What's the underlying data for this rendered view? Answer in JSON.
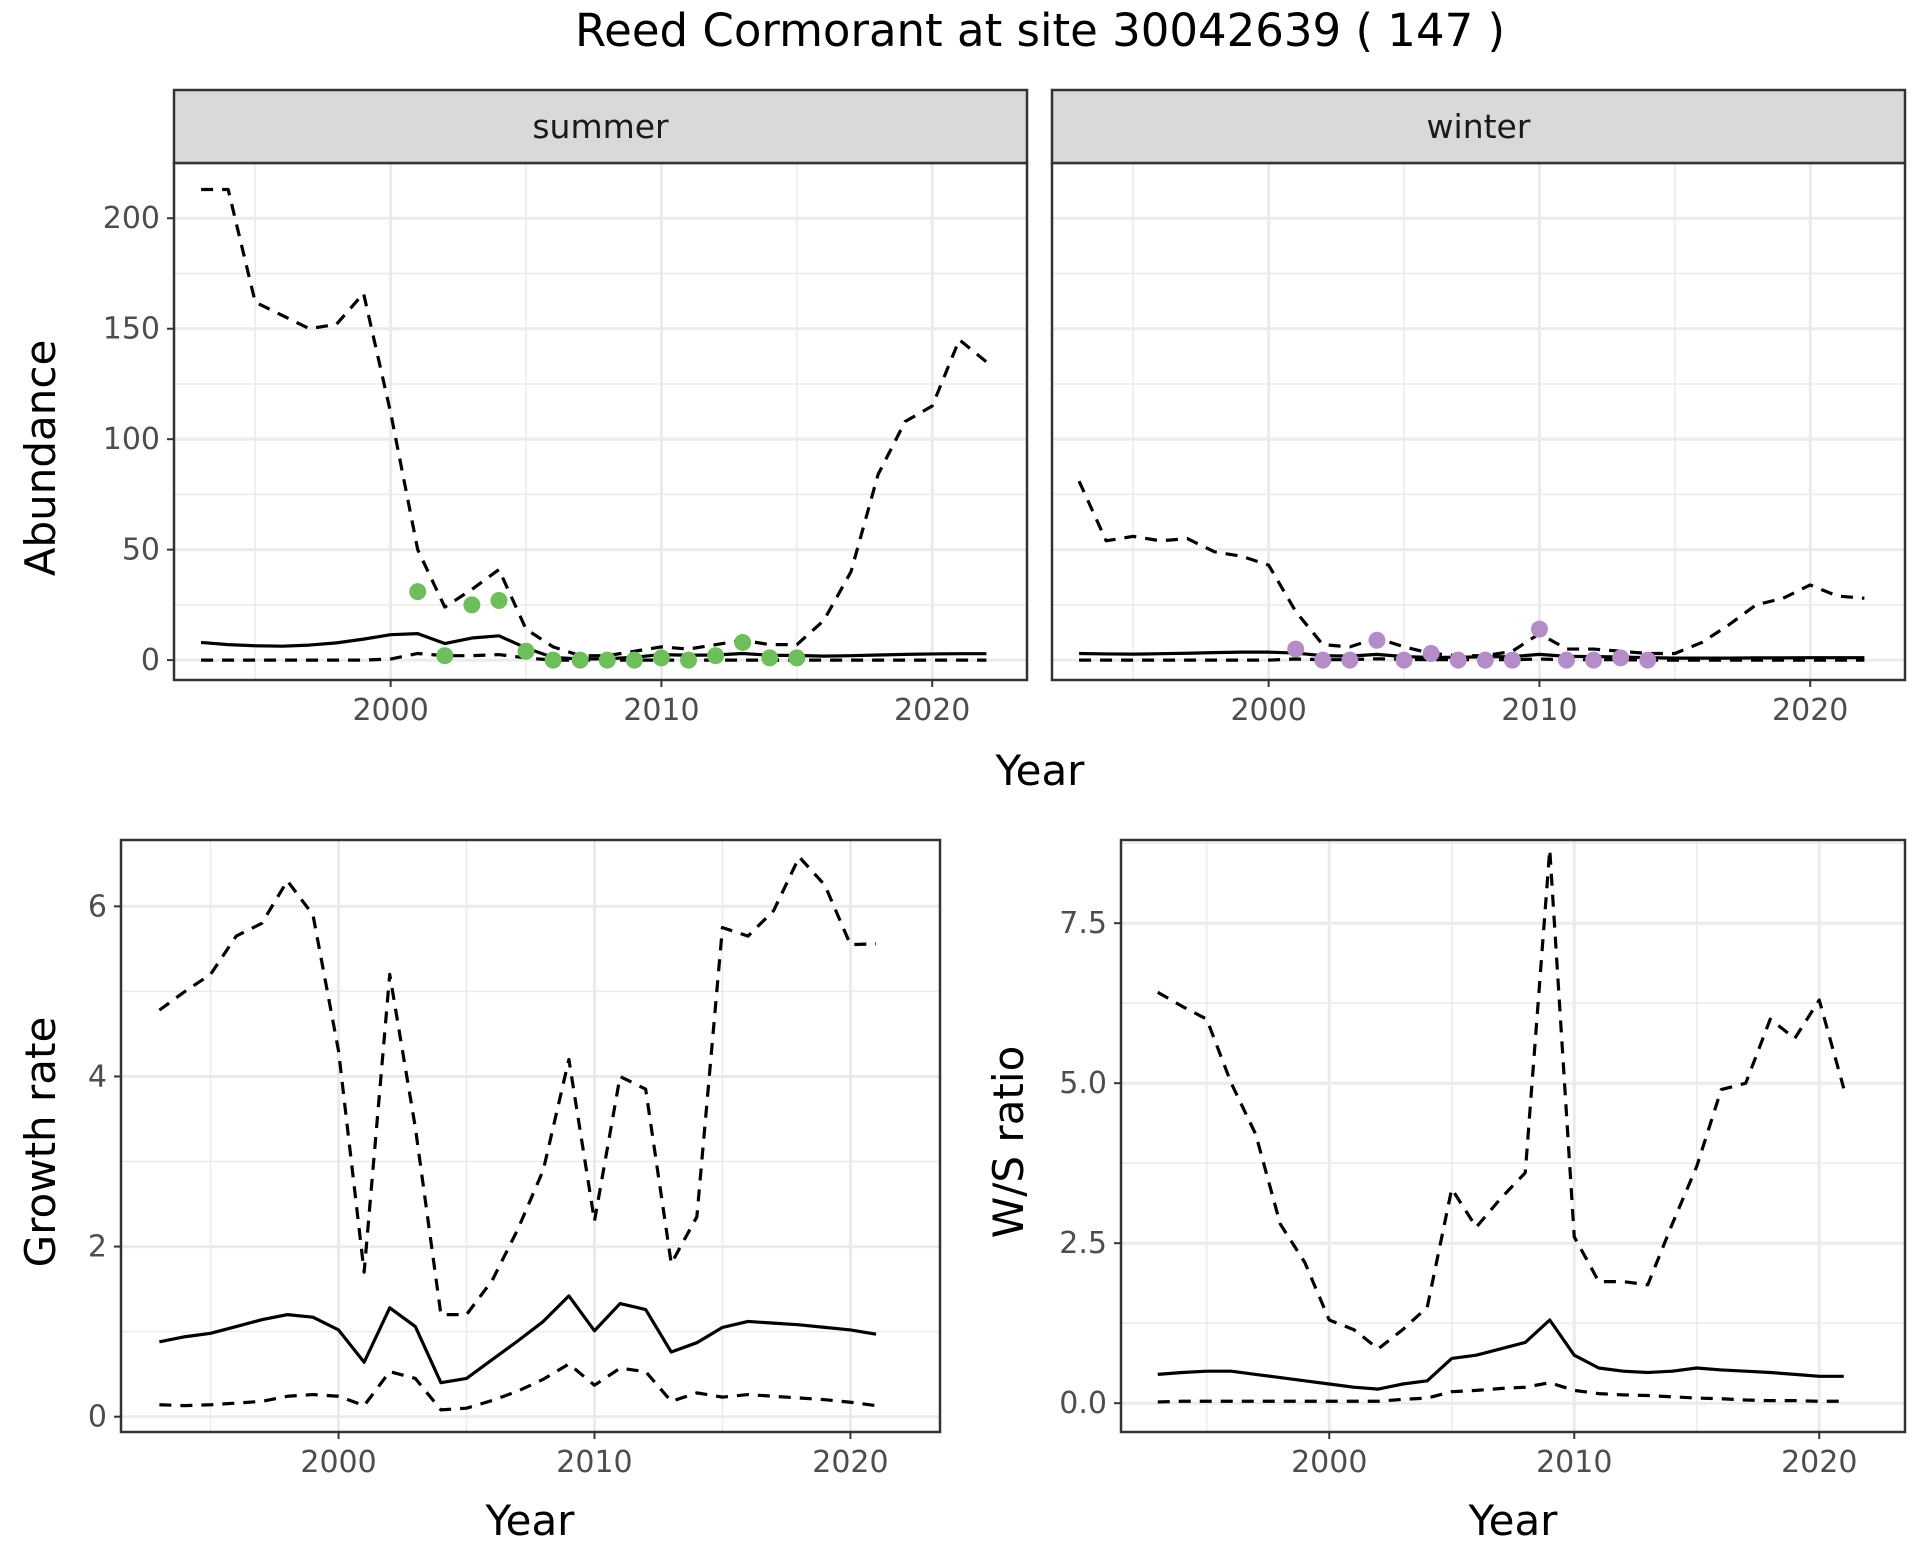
{
  "title": "Reed Cormorant at site 30042639 ( 147 )",
  "colors": {
    "summer_points": "#6ebf5c",
    "winter_points": "#b48cc8",
    "lines": "#000000",
    "strip_fill": "#d9d9d9",
    "grid": "#ebebeb"
  },
  "chart_data": [
    {
      "type": "line",
      "panel": "summer",
      "facet_label": "summer",
      "xlabel": "Year",
      "ylabel": "Abundance",
      "xlim": [
        1992,
        2023.5
      ],
      "ylim": [
        -9,
        225
      ],
      "x_ticks": [
        2000,
        2010,
        2020
      ],
      "y_ticks": [
        0,
        50,
        100,
        150,
        200
      ],
      "grid": true,
      "series": [
        {
          "style": "solid",
          "x": [
            1993,
            1994,
            1995,
            1996,
            1997,
            1998,
            1999,
            2000,
            2001,
            2002,
            2003,
            2004,
            2005,
            2006,
            2007,
            2008,
            2009,
            2010,
            2011,
            2012,
            2013,
            2014,
            2015,
            2016,
            2017,
            2018,
            2019,
            2020,
            2021,
            2022
          ],
          "y": [
            8,
            7,
            6.5,
            6.3,
            6.8,
            7.8,
            9.5,
            11.5,
            12,
            7.5,
            10,
            11,
            5.5,
            1.2,
            0.5,
            0.6,
            1.3,
            2.5,
            2.2,
            2.3,
            3,
            2.2,
            2.1,
            1.8,
            2.0,
            2.3,
            2.6,
            2.8,
            2.9,
            2.9
          ]
        },
        {
          "style": "dashed",
          "x": [
            1993,
            1994,
            1995,
            1996,
            1997,
            1998,
            1999,
            2000,
            2001,
            2002,
            2003,
            2004,
            2005,
            2006,
            2007,
            2008,
            2009,
            2010,
            2011,
            2012,
            2013,
            2014,
            2015,
            2016,
            2017,
            2018,
            2019,
            2020,
            2021,
            2022
          ],
          "y": [
            213,
            213,
            162,
            156,
            150,
            152,
            166,
            112,
            50,
            24,
            32,
            41,
            14,
            6,
            2,
            2,
            4,
            6,
            5,
            7,
            9,
            7,
            7,
            18,
            40,
            84,
            108,
            115,
            145,
            135
          ]
        },
        {
          "style": "dashed",
          "x": [
            1993,
            1994,
            1995,
            1996,
            1997,
            1998,
            1999,
            2000,
            2001,
            2002,
            2003,
            2004,
            2005,
            2006,
            2007,
            2008,
            2009,
            2010,
            2011,
            2012,
            2013,
            2014,
            2015,
            2016,
            2017,
            2018,
            2019,
            2020,
            2021,
            2022
          ],
          "y": [
            0,
            0,
            0,
            0,
            0,
            0,
            0,
            0.5,
            3,
            2,
            2,
            2.5,
            1,
            0,
            0,
            0,
            0,
            0,
            0,
            0,
            0,
            0,
            0,
            0,
            0,
            0,
            0,
            0,
            0,
            0
          ]
        },
        {
          "style": "points",
          "x": [
            2001,
            2002,
            2003,
            2004,
            2005,
            2006,
            2007,
            2008,
            2009,
            2010,
            2011,
            2012,
            2013,
            2014,
            2015
          ],
          "y": [
            31,
            2,
            25,
            27,
            4,
            0,
            0,
            0,
            0,
            1,
            0,
            2,
            8,
            1,
            1
          ]
        }
      ]
    },
    {
      "type": "line",
      "panel": "winter",
      "facet_label": "winter",
      "xlabel": "Year",
      "ylabel": "Abundance",
      "xlim": [
        1992,
        2023.5
      ],
      "ylim": [
        -9,
        225
      ],
      "x_ticks": [
        2000,
        2010,
        2020
      ],
      "y_ticks": [
        0,
        50,
        100,
        150,
        200
      ],
      "grid": true,
      "series": [
        {
          "style": "solid",
          "x": [
            1993,
            1994,
            1995,
            1996,
            1997,
            1998,
            1999,
            2000,
            2001,
            2002,
            2003,
            2004,
            2005,
            2006,
            2007,
            2008,
            2009,
            2010,
            2011,
            2012,
            2013,
            2014,
            2015,
            2016,
            2017,
            2018,
            2019,
            2020,
            2021,
            2022
          ],
          "y": [
            3,
            2.8,
            2.7,
            2.9,
            3.1,
            3.4,
            3.6,
            3.6,
            3.2,
            2.0,
            1.8,
            2.6,
            1.6,
            1.2,
            1.3,
            1.5,
            1.6,
            2.6,
            1.7,
            1.6,
            1.4,
            1.1,
            0.9,
            0.9,
            0.9,
            1.0,
            1.0,
            1.1,
            1.1,
            1.1
          ]
        },
        {
          "style": "dashed",
          "x": [
            1993,
            1994,
            1995,
            1996,
            1997,
            1998,
            1999,
            2000,
            2001,
            2002,
            2003,
            2004,
            2005,
            2006,
            2007,
            2008,
            2009,
            2010,
            2011,
            2012,
            2013,
            2014,
            2015,
            2016,
            2017,
            2018,
            2019,
            2020,
            2021,
            2022
          ],
          "y": [
            81,
            54,
            56,
            54,
            55,
            49,
            47,
            43,
            22,
            7,
            6,
            10,
            6,
            3,
            2,
            2,
            4,
            12,
            5,
            5,
            4,
            3,
            3,
            8,
            16,
            25,
            28,
            34,
            29,
            28
          ]
        },
        {
          "style": "dashed",
          "x": [
            1993,
            1994,
            1995,
            1996,
            1997,
            1998,
            1999,
            2000,
            2001,
            2002,
            2003,
            2004,
            2005,
            2006,
            2007,
            2008,
            2009,
            2010,
            2011,
            2012,
            2013,
            2014,
            2015,
            2016,
            2017,
            2018,
            2019,
            2020,
            2021,
            2022
          ],
          "y": [
            0,
            0,
            0,
            0,
            0,
            0,
            0,
            0,
            0.5,
            0.2,
            0.2,
            0.6,
            0.3,
            0.2,
            0.2,
            0.2,
            0.2,
            0.5,
            0.2,
            0.2,
            0.2,
            0,
            0,
            0,
            0,
            0,
            0,
            0,
            0,
            0
          ]
        },
        {
          "style": "points",
          "x": [
            2001,
            2002,
            2003,
            2004,
            2005,
            2006,
            2007,
            2008,
            2009,
            2010,
            2011,
            2012,
            2013,
            2014
          ],
          "y": [
            5,
            0,
            0,
            9,
            0,
            3,
            0,
            0,
            0,
            14,
            0,
            0,
            1,
            0
          ]
        }
      ]
    },
    {
      "type": "line",
      "panel": "growth",
      "xlabel": "Year",
      "ylabel": "Growth rate",
      "xlim": [
        1991.5,
        2023.5
      ],
      "ylim": [
        -0.18,
        6.78
      ],
      "x_ticks": [
        2000,
        2010,
        2020
      ],
      "y_ticks": [
        0,
        2,
        4,
        6
      ],
      "grid": true,
      "series": [
        {
          "style": "solid",
          "x": [
            1993,
            1994,
            1995,
            1996,
            1997,
            1998,
            1999,
            2000,
            2001,
            2002,
            2003,
            2004,
            2005,
            2006,
            2007,
            2008,
            2009,
            2010,
            2011,
            2012,
            2013,
            2014,
            2015,
            2016,
            2017,
            2018,
            2019,
            2020,
            2021
          ],
          "y": [
            0.88,
            0.94,
            0.98,
            1.06,
            1.14,
            1.2,
            1.17,
            1.02,
            0.64,
            1.28,
            1.06,
            0.4,
            0.45,
            0.67,
            0.89,
            1.12,
            1.42,
            1.01,
            1.33,
            1.26,
            0.76,
            0.87,
            1.05,
            1.12,
            1.1,
            1.08,
            1.05,
            1.02,
            0.97
          ]
        },
        {
          "style": "dashed",
          "x": [
            1993,
            1994,
            1995,
            1996,
            1997,
            1998,
            1999,
            2000,
            2001,
            2002,
            2003,
            2004,
            2005,
            2006,
            2007,
            2008,
            2009,
            2010,
            2011,
            2012,
            2013,
            2014,
            2015,
            2016,
            2017,
            2018,
            2019,
            2020,
            2021
          ],
          "y": [
            4.78,
            5.0,
            5.2,
            5.65,
            5.8,
            6.3,
            5.9,
            4.3,
            1.7,
            5.2,
            3.4,
            1.2,
            1.2,
            1.6,
            2.2,
            2.9,
            4.2,
            2.3,
            4.0,
            3.85,
            1.8,
            2.35,
            5.75,
            5.65,
            5.95,
            6.58,
            6.25,
            5.55,
            5.56
          ]
        },
        {
          "style": "dashed",
          "x": [
            1993,
            1994,
            1995,
            1996,
            1997,
            1998,
            1999,
            2000,
            2001,
            2002,
            2003,
            2004,
            2005,
            2006,
            2007,
            2008,
            2009,
            2010,
            2011,
            2012,
            2013,
            2014,
            2015,
            2016,
            2017,
            2018,
            2019,
            2020,
            2021
          ],
          "y": [
            0.14,
            0.13,
            0.14,
            0.16,
            0.18,
            0.24,
            0.26,
            0.24,
            0.13,
            0.53,
            0.45,
            0.08,
            0.1,
            0.19,
            0.3,
            0.44,
            0.62,
            0.37,
            0.57,
            0.53,
            0.18,
            0.28,
            0.23,
            0.26,
            0.24,
            0.22,
            0.2,
            0.17,
            0.13
          ]
        }
      ]
    },
    {
      "type": "line",
      "panel": "ratio",
      "xlabel": "Year",
      "ylabel": "W/S ratio",
      "xlim": [
        1991.5,
        2023.5
      ],
      "ylim": [
        -0.45,
        8.8
      ],
      "x_ticks": [
        2000,
        2010,
        2020
      ],
      "y_ticks": [
        0.0,
        2.5,
        5.0,
        7.5
      ],
      "y_tick_labels": [
        "0.0",
        "2.5",
        "5.0",
        "7.5"
      ],
      "grid": true,
      "series": [
        {
          "style": "solid",
          "x": [
            1993,
            1994,
            1995,
            1996,
            1997,
            1998,
            1999,
            2000,
            2001,
            2002,
            2003,
            2004,
            2005,
            2006,
            2007,
            2008,
            2009,
            2010,
            2011,
            2012,
            2013,
            2014,
            2015,
            2016,
            2017,
            2018,
            2019,
            2020,
            2021
          ],
          "y": [
            0.45,
            0.48,
            0.5,
            0.5,
            0.45,
            0.4,
            0.35,
            0.3,
            0.25,
            0.22,
            0.3,
            0.35,
            0.7,
            0.75,
            0.85,
            0.95,
            1.3,
            0.75,
            0.55,
            0.5,
            0.48,
            0.5,
            0.55,
            0.52,
            0.5,
            0.48,
            0.45,
            0.42,
            0.42
          ]
        },
        {
          "style": "dashed",
          "x": [
            1993,
            1994,
            1995,
            1996,
            1997,
            1998,
            1999,
            2000,
            2001,
            2002,
            2003,
            2004,
            2005,
            2006,
            2007,
            2008,
            2009,
            2010,
            2011,
            2012,
            2013,
            2014,
            2015,
            2016,
            2017,
            2018,
            2019,
            2020,
            2021
          ],
          "y": [
            6.42,
            6.2,
            6.0,
            5.0,
            4.2,
            2.8,
            2.2,
            1.3,
            1.15,
            0.85,
            1.15,
            1.5,
            3.35,
            2.75,
            3.2,
            3.6,
            8.65,
            2.6,
            1.9,
            1.9,
            1.85,
            2.8,
            3.7,
            4.9,
            5.0,
            6.0,
            5.7,
            6.3,
            4.92
          ]
        },
        {
          "style": "dashed",
          "x": [
            1993,
            1994,
            1995,
            1996,
            1997,
            1998,
            1999,
            2000,
            2001,
            2002,
            2003,
            2004,
            2005,
            2006,
            2007,
            2008,
            2009,
            2010,
            2011,
            2012,
            2013,
            2014,
            2015,
            2016,
            2017,
            2018,
            2019,
            2020,
            2021
          ],
          "y": [
            0.02,
            0.03,
            0.03,
            0.03,
            0.03,
            0.03,
            0.03,
            0.03,
            0.03,
            0.03,
            0.06,
            0.08,
            0.18,
            0.2,
            0.23,
            0.25,
            0.32,
            0.2,
            0.15,
            0.13,
            0.12,
            0.1,
            0.08,
            0.07,
            0.05,
            0.04,
            0.04,
            0.03,
            0.03
          ]
        }
      ]
    }
  ]
}
